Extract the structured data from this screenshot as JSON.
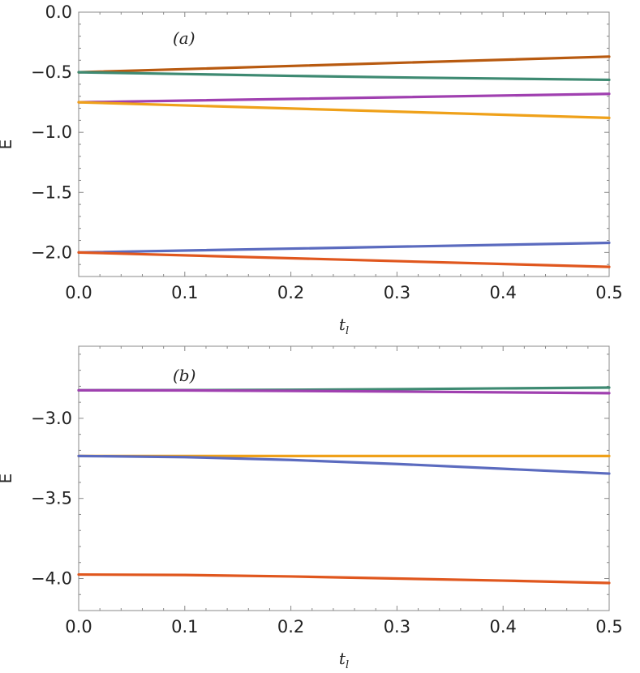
{
  "chart_data": [
    {
      "type": "line",
      "panel_label": "(a)",
      "xlabel": "t_l",
      "ylabel": "E",
      "xlim": [
        0,
        0.5
      ],
      "ylim": [
        -2.2,
        0.0
      ],
      "xticks": [
        "0.0",
        "0.1",
        "0.2",
        "0.3",
        "0.4",
        "0.5"
      ],
      "yticks": [
        "0.0",
        "-0.5",
        "-1.0",
        "-1.5",
        "-2.0"
      ],
      "series": [
        {
          "color": "#B85A10",
          "x": [
            0,
            0.5
          ],
          "y": [
            -0.5,
            -0.37
          ]
        },
        {
          "color": "#3E8A72",
          "x": [
            0,
            0.1,
            0.2,
            0.3,
            0.4,
            0.5
          ],
          "y": [
            -0.5,
            -0.515,
            -0.53,
            -0.543,
            -0.553,
            -0.563
          ]
        },
        {
          "color": "#A040B0",
          "x": [
            0,
            0.5
          ],
          "y": [
            -0.75,
            -0.68
          ]
        },
        {
          "color": "#EFA11A",
          "x": [
            0,
            0.5
          ],
          "y": [
            -0.75,
            -0.88
          ]
        },
        {
          "color": "#5B6BBF",
          "x": [
            0,
            0.5
          ],
          "y": [
            -2.0,
            -1.92
          ]
        },
        {
          "color": "#E0571E",
          "x": [
            0,
            0.5
          ],
          "y": [
            -2.0,
            -2.12
          ]
        }
      ]
    },
    {
      "type": "line",
      "panel_label": "(b)",
      "xlabel": "t_l",
      "ylabel": "E",
      "xlim": [
        0,
        0.5
      ],
      "ylim": [
        -4.2,
        -2.55
      ],
      "xticks": [
        "0.0",
        "0.1",
        "0.2",
        "0.3",
        "0.4",
        "0.5"
      ],
      "yticks": [
        "-3.0",
        "-3.5",
        "-4.0"
      ],
      "series": [
        {
          "color": "#3E8A72",
          "x": [
            0,
            0.1,
            0.2,
            0.3,
            0.4,
            0.5
          ],
          "y": [
            -2.825,
            -2.824,
            -2.822,
            -2.818,
            -2.813,
            -2.808
          ]
        },
        {
          "color": "#A040B0",
          "x": [
            0,
            0.1,
            0.2,
            0.3,
            0.4,
            0.5
          ],
          "y": [
            -2.825,
            -2.826,
            -2.829,
            -2.833,
            -2.838,
            -2.843
          ]
        },
        {
          "color": "#EFA11A",
          "x": [
            0,
            0.5
          ],
          "y": [
            -3.235,
            -3.235
          ]
        },
        {
          "color": "#5B6BBF",
          "x": [
            0,
            0.1,
            0.2,
            0.3,
            0.4,
            0.5
          ],
          "y": [
            -3.235,
            -3.242,
            -3.26,
            -3.285,
            -3.315,
            -3.345
          ]
        },
        {
          "color": "#E0571E",
          "x": [
            0,
            0.1,
            0.2,
            0.3,
            0.4,
            0.5
          ],
          "y": [
            -3.975,
            -3.978,
            -3.987,
            -4.0,
            -4.013,
            -4.028
          ]
        }
      ]
    }
  ]
}
